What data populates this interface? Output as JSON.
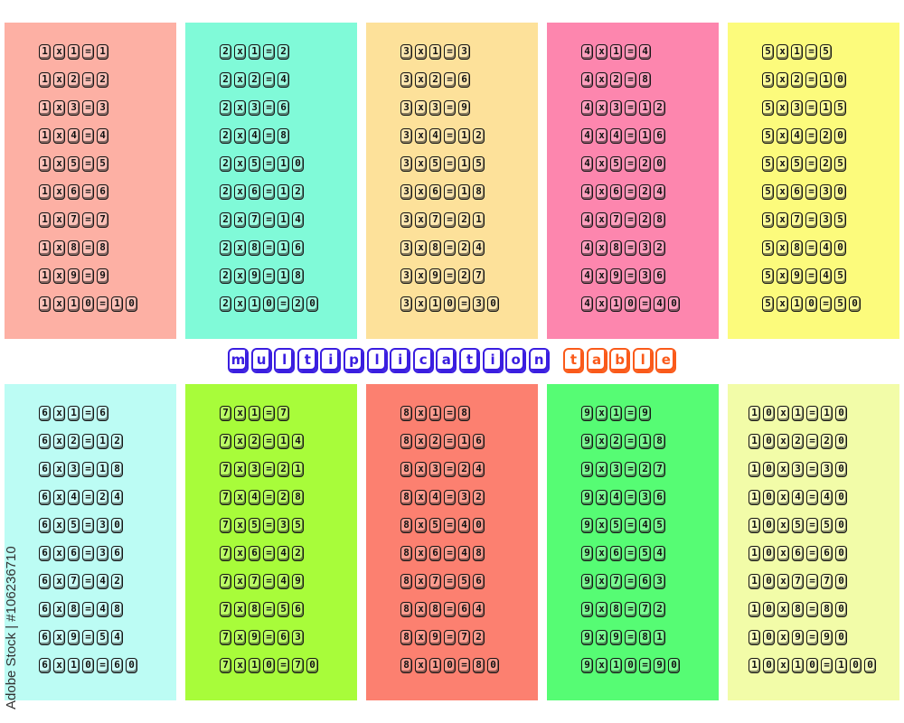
{
  "title": {
    "word1": "multiplication",
    "word2": "table",
    "color1": "#3a1ee0",
    "color2": "#fa5a1a"
  },
  "panels": [
    {
      "color": "#fdb0a4",
      "rows": [
        "1x1=1",
        "1x2=2",
        "1x3=3",
        "1x4=4",
        "1x5=5",
        "1x6=6",
        "1x7=7",
        "1x8=8",
        "1x9=9",
        "1x10=10"
      ]
    },
    {
      "color": "#80fad8",
      "rows": [
        "2x1=2",
        "2x2=4",
        "2x3=6",
        "2x4=8",
        "2x5=10",
        "2x6=12",
        "2x7=14",
        "2x8=16",
        "2x9=18",
        "2x10=20"
      ]
    },
    {
      "color": "#fde19a",
      "rows": [
        "3x1=3",
        "3x2=6",
        "3x3=9",
        "3x4=12",
        "3x5=15",
        "3x6=18",
        "3x7=21",
        "3x8=24",
        "3x9=27",
        "3x10=30"
      ]
    },
    {
      "color": "#fd86ae",
      "rows": [
        "4x1=4",
        "4x2=8",
        "4x3=12",
        "4x4=16",
        "4x5=20",
        "4x6=24",
        "4x7=28",
        "4x8=32",
        "4x9=36",
        "4x10=40"
      ]
    },
    {
      "color": "#fcfb7c",
      "rows": [
        "5x1=5",
        "5x2=10",
        "5x3=15",
        "5x4=20",
        "5x5=25",
        "5x6=30",
        "5x7=35",
        "5x8=40",
        "5x9=45",
        "5x10=50"
      ]
    },
    {
      "color": "#bcfcf4",
      "rows": [
        "6x1=6",
        "6x2=12",
        "6x3=18",
        "6x4=24",
        "6x5=30",
        "6x6=36",
        "6x7=42",
        "6x8=48",
        "6x9=54",
        "6x10=60"
      ]
    },
    {
      "color": "#a8fc3a",
      "rows": [
        "7x1=7",
        "7x2=14",
        "7x3=21",
        "7x4=28",
        "7x5=35",
        "7x6=42",
        "7x7=49",
        "7x8=56",
        "7x9=63",
        "7x10=70"
      ]
    },
    {
      "color": "#fc8070",
      "rows": [
        "8x1=8",
        "8x2=16",
        "8x3=24",
        "8x4=32",
        "8x5=40",
        "8x6=48",
        "8x7=56",
        "8x8=64",
        "8x9=72",
        "8x10=80"
      ]
    },
    {
      "color": "#56fc74",
      "rows": [
        "9x1=9",
        "9x2=18",
        "9x3=27",
        "9x4=36",
        "9x5=45",
        "9x6=54",
        "9x7=63",
        "9x8=72",
        "9x9=81",
        "9x10=90"
      ]
    },
    {
      "color": "#f2fca8",
      "rows": [
        "10x1=10",
        "10x2=20",
        "10x3=30",
        "10x4=40",
        "10x5=50",
        "10x6=60",
        "10x7=70",
        "10x8=80",
        "10x9=90",
        "10x10=100"
      ]
    }
  ],
  "watermark": "Adobe Stock | #106236710"
}
